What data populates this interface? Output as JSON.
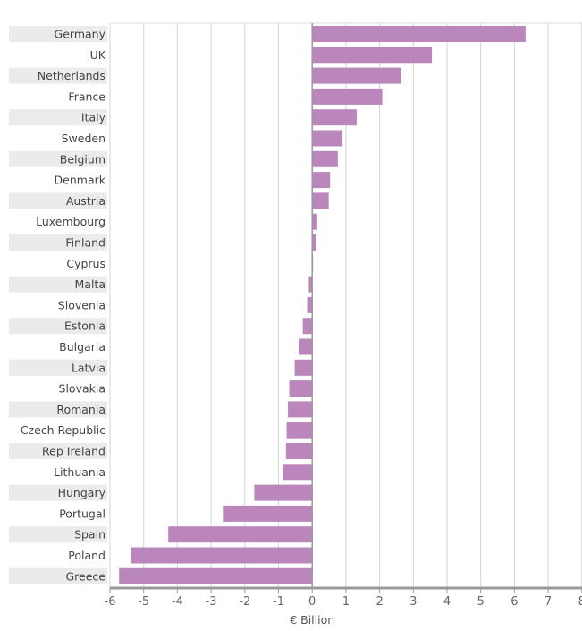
{
  "chart_data": {
    "type": "bar",
    "orientation": "horizontal",
    "categories": [
      "Germany",
      "UK",
      "Netherlands",
      "France",
      "Italy",
      "Sweden",
      "Belgium",
      "Denmark",
      "Austria",
      "Luxembourg",
      "Finland",
      "Cyprus",
      "Malta",
      "Slovenia",
      "Estonia",
      "Bulgaria",
      "Latvia",
      "Slovakia",
      "Romania",
      "Czech Republic",
      "Rep Ireland",
      "Lithuania",
      "Hungary",
      "Portugal",
      "Spain",
      "Poland",
      "Greece"
    ],
    "values": [
      6.33,
      3.55,
      2.64,
      2.08,
      1.32,
      0.9,
      0.76,
      0.53,
      0.49,
      0.15,
      0.12,
      0.01,
      -0.1,
      -0.15,
      -0.28,
      -0.38,
      -0.52,
      -0.68,
      -0.72,
      -0.76,
      -0.78,
      -0.88,
      -1.72,
      -2.65,
      -4.27,
      -5.38,
      -5.73
    ],
    "title": "",
    "xlabel": "€ Billion",
    "ylabel": "",
    "xlim": [
      -6,
      8
    ],
    "xticks": [
      "-6",
      "-5",
      "-4",
      "-3",
      "-2",
      "-1",
      "0",
      "1",
      "2",
      "3",
      "4",
      "5",
      "6",
      "7",
      "8"
    ],
    "grid": true,
    "bar_color": "#bb86bb"
  }
}
